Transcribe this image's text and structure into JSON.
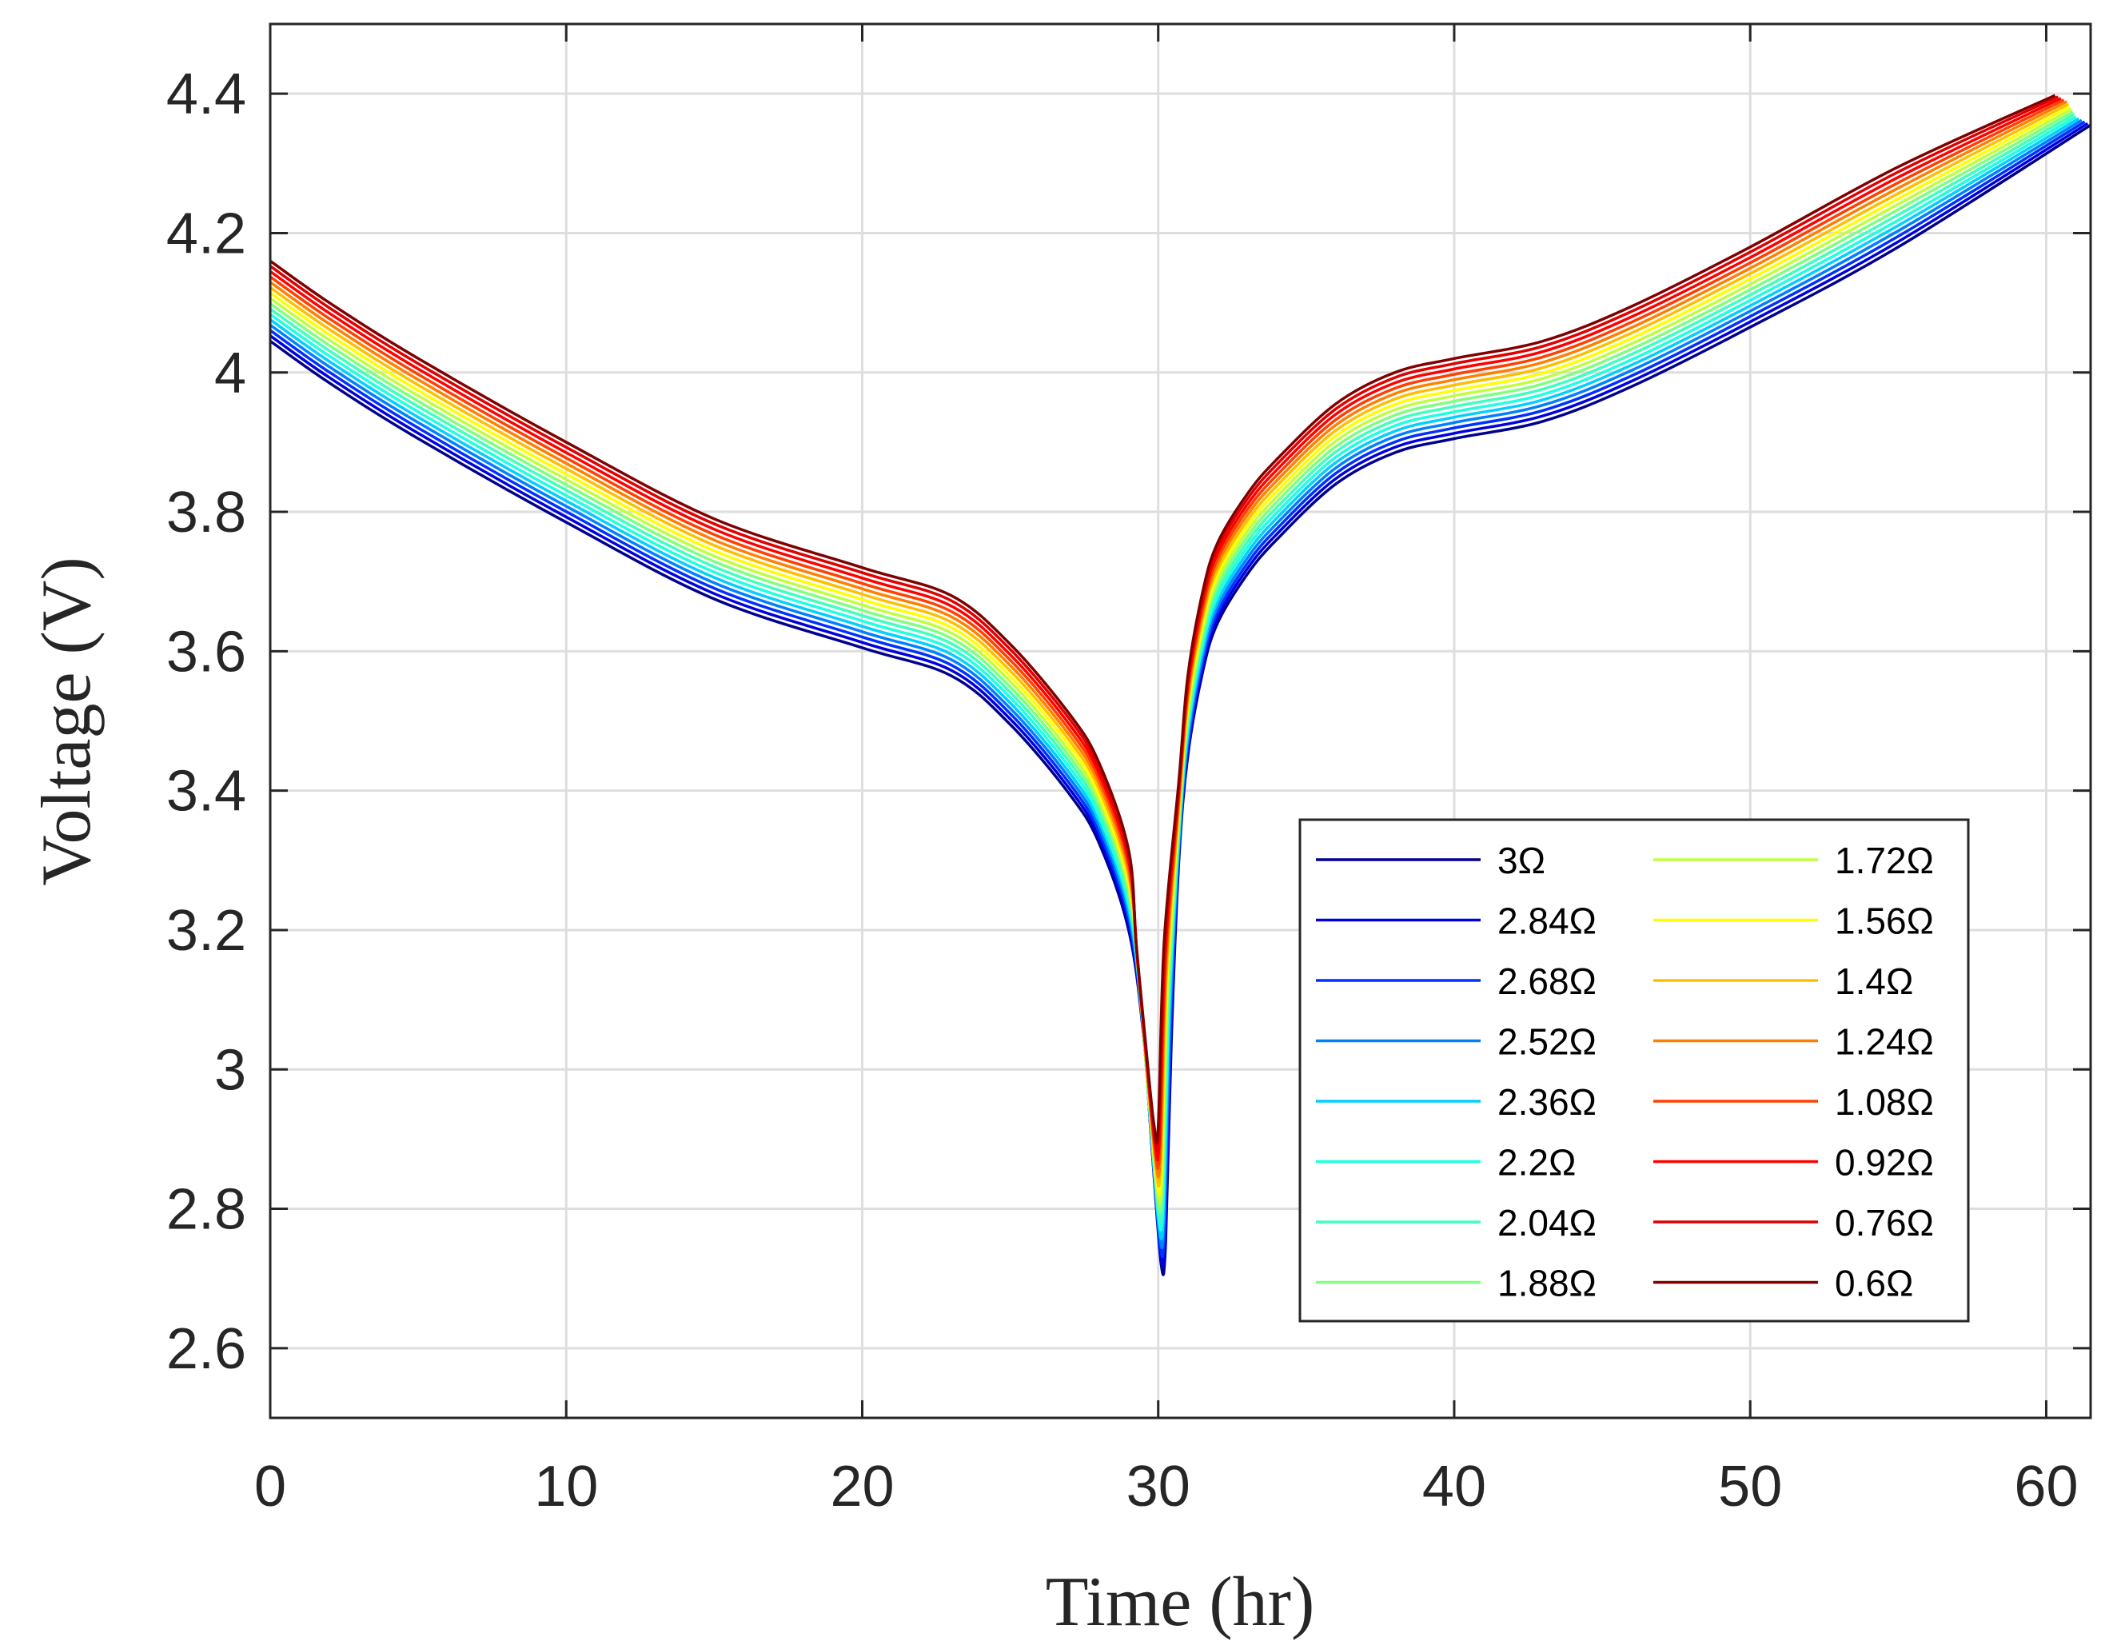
{
  "chart_data": {
    "type": "line",
    "title": "",
    "xlabel": "Time (hr)",
    "ylabel": "Voltage (V)",
    "xlim": [
      0,
      61.5
    ],
    "ylim": [
      2.5,
      4.5
    ],
    "xticks": [
      0,
      10,
      20,
      30,
      40,
      50,
      60
    ],
    "yticks": [
      2.6,
      2.8,
      3,
      3.2,
      3.4,
      3.6,
      3.8,
      4,
      4.2,
      4.4
    ],
    "xtick_labels": [
      "0",
      "10",
      "20",
      "30",
      "40",
      "50",
      "60"
    ],
    "ytick_labels": [
      "2.6",
      "2.8",
      "3",
      "3.2",
      "3.4",
      "3.6",
      "3.8",
      "4",
      "4.2",
      "4.4"
    ],
    "grid": true,
    "legend_position": "bottom-right",
    "legend_columns": 2,
    "reference_curve": {
      "x": [
        0,
        2,
        5,
        10,
        15,
        20,
        23,
        25,
        27,
        28,
        29,
        29.5,
        29.8,
        30.1,
        30.25,
        30.45,
        30.7,
        31,
        31.5,
        32,
        33,
        34,
        36,
        38,
        40,
        43,
        46,
        50,
        55,
        61.5
      ],
      "y": [
        4.045,
        3.985,
        3.905,
        3.785,
        3.675,
        3.605,
        3.565,
        3.495,
        3.395,
        3.325,
        3.2,
        3.05,
        2.88,
        2.72,
        2.75,
        3.05,
        3.3,
        3.45,
        3.57,
        3.64,
        3.71,
        3.76,
        3.84,
        3.885,
        3.905,
        3.93,
        3.98,
        4.065,
        4.18,
        4.355
      ]
    },
    "series": [
      {
        "name": "3Ω",
        "color": "#00008f",
        "y_shift": 0.0,
        "x_end": 61.5
      },
      {
        "name": "2.84Ω",
        "color": "#0000df",
        "y_shift": 0.0077,
        "x_end": 61.4
      },
      {
        "name": "2.68Ω",
        "color": "#0030ff",
        "y_shift": 0.0154,
        "x_end": 61.3
      },
      {
        "name": "2.52Ω",
        "color": "#0080ff",
        "y_shift": 0.0231,
        "x_end": 61.2
      },
      {
        "name": "2.36Ω",
        "color": "#00cfff",
        "y_shift": 0.0308,
        "x_end": 61.1
      },
      {
        "name": "2.2Ω",
        "color": "#20ffdf",
        "y_shift": 0.0385,
        "x_end": 61.0
      },
      {
        "name": "2.04Ω",
        "color": "#40ffbf",
        "y_shift": 0.0462,
        "x_end": 60.95
      },
      {
        "name": "1.88Ω",
        "color": "#80ff80",
        "y_shift": 0.0538,
        "x_end": 60.9
      },
      {
        "name": "1.72Ω",
        "color": "#bfff40",
        "y_shift": 0.0615,
        "x_end": 60.85
      },
      {
        "name": "1.56Ω",
        "color": "#ffff00",
        "y_shift": 0.0692,
        "x_end": 60.8
      },
      {
        "name": "1.4Ω",
        "color": "#ffbf00",
        "y_shift": 0.0769,
        "x_end": 60.75
      },
      {
        "name": "1.24Ω",
        "color": "#ff8000",
        "y_shift": 0.0846,
        "x_end": 60.7
      },
      {
        "name": "1.08Ω",
        "color": "#ff4000",
        "y_shift": 0.0923,
        "x_end": 60.6
      },
      {
        "name": "0.92Ω",
        "color": "#ff0000",
        "y_shift": 0.1,
        "x_end": 60.5
      },
      {
        "name": "0.76Ω",
        "color": "#df0000",
        "y_shift": 0.1077,
        "x_end": 60.4
      },
      {
        "name": "0.6Ω",
        "color": "#800000",
        "y_shift": 0.115,
        "x_end": 60.3
      }
    ]
  }
}
